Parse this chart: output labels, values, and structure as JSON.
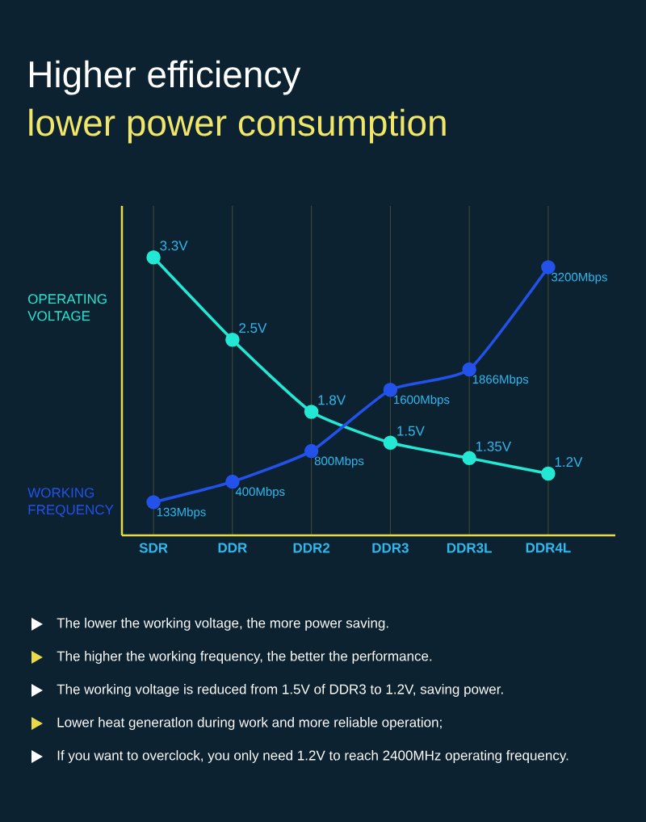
{
  "chart_data": {
    "type": "line",
    "title": "Higher efficiency",
    "subtitle": "lower power consumption",
    "categories": [
      "SDR",
      "DDR",
      "DDR2",
      "DDR3",
      "DDR3L",
      "DDR4L"
    ],
    "series": [
      {
        "name": "OPERATING VOLTAGE",
        "color": "#22e8d4",
        "values": [
          3.3,
          2.5,
          1.8,
          1.5,
          1.35,
          1.2
        ],
        "value_labels": [
          "3.3V",
          "2.5V",
          "1.8V",
          "1.5V",
          "1.35V",
          "1.2V"
        ]
      },
      {
        "name": "WORKING FREQUENCY",
        "color": "#2352ea",
        "axis": "y2",
        "values": [
          133,
          400,
          800,
          1600,
          1866,
          3200
        ],
        "value_labels": [
          "133Mbps",
          "400Mbps",
          "800Mbps",
          "1600Mbps",
          "1866Mbps",
          "3200Mbps"
        ]
      }
    ],
    "ylim": [
      0.6,
      3.8
    ],
    "y2lim": [
      -300,
      4000
    ],
    "grid": "x",
    "marker": "circle",
    "tick_labels": "x",
    "annotations": [
      "The lower the working voltage, the more power saving.",
      "The higher the working frequency, the better the performance.",
      "The working voltage is reduced from 1.5V of DDR3 to 1.2V, saving power.",
      "Lower heat generatlon during work and more reliable operation;",
      "If you want to overclock, you only need 1.2V to reach 2400MHz operating frequency."
    ]
  }
}
